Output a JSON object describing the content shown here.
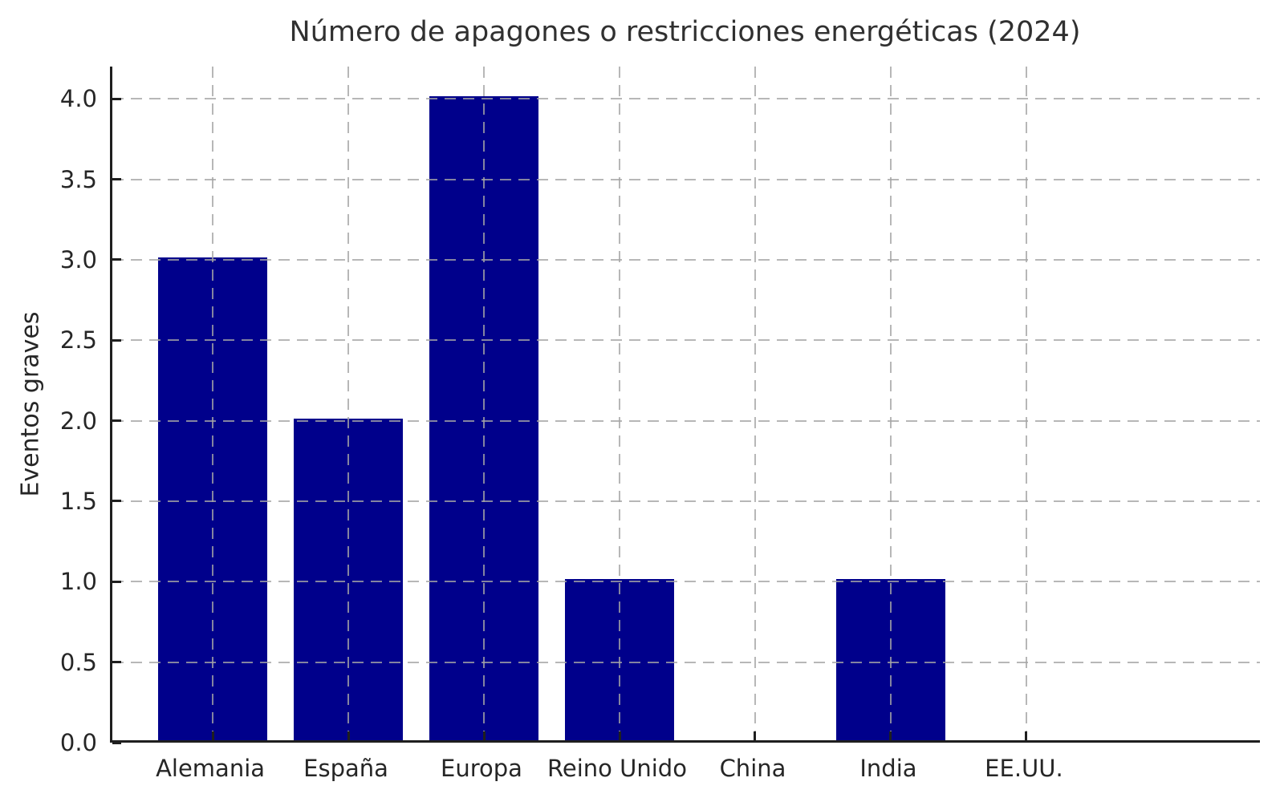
{
  "chart_data": {
    "type": "bar",
    "title": "Número de apagones o restricciones energéticas (2024)",
    "ylabel": "Eventos graves",
    "xlabel": "",
    "categories": [
      "Alemania",
      "España",
      "Europa",
      "Reino Unido",
      "China",
      "India",
      "EE.UU."
    ],
    "values": [
      3,
      2,
      4,
      1,
      0,
      1,
      0
    ],
    "yticks": [
      0,
      0.5,
      1,
      1.5,
      2,
      2.5,
      3,
      3.5,
      4
    ],
    "ytick_labels": [
      "0.0",
      "0.5",
      "1.0",
      "1.5",
      "2.0",
      "2.5",
      "3.0",
      "3.5",
      "4.0"
    ],
    "ylim": [
      0,
      4.2
    ],
    "bar_color": "#00008B",
    "bar_width_fraction": 0.8,
    "grid": {
      "show": true,
      "axis": "both",
      "linestyle": "dashed",
      "color": "#bcbcbc",
      "above_bars": true
    },
    "legend": "none",
    "spines": [
      "left",
      "bottom"
    ],
    "spine_color": "#1f1f1f",
    "text_color": "#262626",
    "background": "#ffffff"
  }
}
